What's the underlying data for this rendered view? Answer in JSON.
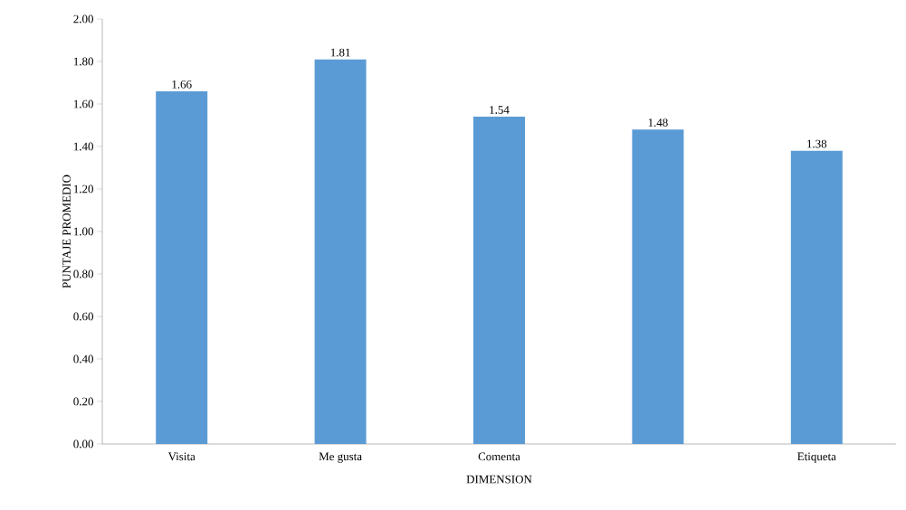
{
  "chart_data": {
    "type": "bar",
    "xlabel": "DIMENSION",
    "ylabel": "PUNTAJE PROMEDIO",
    "categories": [
      "Visita",
      "Me gusta",
      "Comenta",
      null,
      "Etiqueta"
    ],
    "values": [
      1.66,
      1.81,
      1.54,
      1.48,
      1.38
    ],
    "color": "#5b9bd5",
    "ylim": [
      0,
      2
    ],
    "yticks": [
      {
        "value": 0,
        "label": "0.00"
      },
      {
        "value": 0.2,
        "label": "0.20"
      },
      {
        "value": 0.4,
        "label": "0.40"
      },
      {
        "value": 0.6,
        "label": "0.60"
      },
      {
        "value": 0.8,
        "label": "0.80"
      },
      {
        "value": 1,
        "label": "1.00"
      },
      {
        "value": 1.2,
        "label": "1.20"
      },
      {
        "value": 1.4,
        "label": "1.40"
      },
      {
        "value": 1.6,
        "label": "1.60"
      },
      {
        "value": 1.8,
        "label": "1.80"
      },
      {
        "value": 2,
        "label": "2.00"
      }
    ],
    "data_labels": true,
    "grid": false
  }
}
